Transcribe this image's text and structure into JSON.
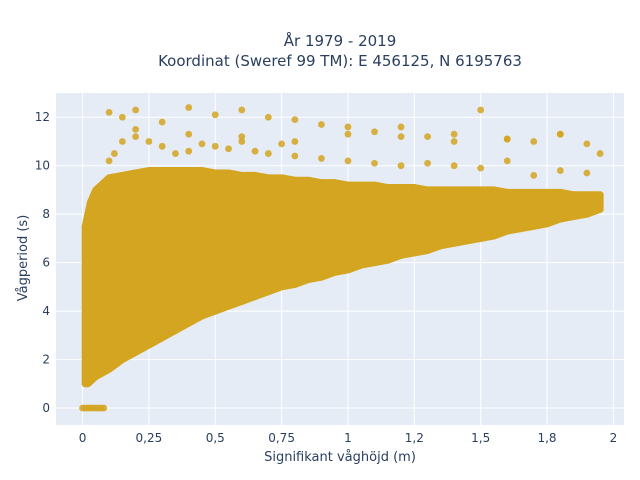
{
  "chart_data": {
    "type": "scatter",
    "title_lines": [
      "År 1979 - 2019",
      "Koordinat (Sweref 99 TM): E 456125, N 6195763"
    ],
    "xlabel": "Signifikant våghöjd (m)",
    "ylabel": "Vågperiod (s)",
    "xlim": [
      -0.1,
      2.04
    ],
    "ylim": [
      -0.7,
      13.0
    ],
    "x_ticks": [
      0,
      0.25,
      0.5,
      0.75,
      1,
      1.25,
      1.5,
      1.75,
      2
    ],
    "x_tick_labels": [
      "0",
      "0,25",
      "0,5",
      "0,75",
      "1",
      "1,2",
      "1,5",
      "1,8",
      "2"
    ],
    "y_ticks": [
      0,
      2,
      4,
      6,
      8,
      10,
      12
    ],
    "y_tick_labels": [
      "0",
      "2",
      "4",
      "6",
      "8",
      "10",
      "12"
    ],
    "grid": true,
    "background": "#e5ecf6",
    "marker_color": "#d4a520",
    "series": [
      {
        "x": [
          0.0,
          0.02,
          0.04,
          0.06,
          0.08,
          0.01,
          0.03,
          0.05,
          0.07,
          0.01,
          0.02,
          0.03,
          0.05,
          0.1,
          0.15,
          0.2,
          0.25,
          0.3,
          0.35,
          0.4,
          0.45,
          0.5,
          0.55,
          0.6,
          0.65,
          0.7,
          0.75,
          0.8,
          0.85,
          0.9,
          0.95,
          1.0,
          1.05,
          1.1,
          1.15,
          1.2,
          1.25,
          1.3,
          1.35,
          1.4,
          1.45,
          1.5,
          1.55,
          1.6,
          1.65,
          1.7,
          1.75,
          1.8,
          1.85,
          1.9,
          1.95,
          0.01,
          0.02,
          0.03,
          0.05,
          0.1,
          0.15,
          0.2,
          0.25,
          0.3,
          0.35,
          0.4,
          0.45,
          0.5,
          0.55,
          0.6,
          0.65,
          0.7,
          0.75,
          0.8,
          0.85,
          0.9,
          0.95,
          1.0,
          1.05,
          1.1,
          1.15,
          1.2,
          1.25,
          1.3,
          1.35,
          1.4,
          1.45,
          1.5,
          1.55,
          1.6,
          1.65,
          1.7,
          1.75,
          1.8,
          1.85,
          1.9,
          1.95,
          0.1,
          0.12,
          0.15,
          0.2,
          0.25,
          0.3,
          0.35,
          0.4,
          0.45,
          0.5,
          0.55,
          0.6,
          0.65,
          0.7,
          0.75,
          0.8,
          0.9,
          1.0,
          1.1,
          1.2,
          1.3,
          1.4,
          1.5,
          1.6,
          1.7,
          1.8,
          1.9,
          0.2,
          0.4,
          0.6,
          0.8,
          1.0,
          1.2,
          1.4,
          1.6,
          1.8,
          1.95,
          0.1,
          0.15,
          0.2,
          0.3,
          0.4,
          0.5,
          0.6,
          0.7,
          0.8,
          0.9,
          1.0,
          1.1,
          1.2,
          1.3,
          1.4,
          1.5,
          1.6,
          1.7,
          1.8,
          1.9
        ],
        "y": [
          0.0,
          0.0,
          0.0,
          0.0,
          0.0,
          0.0,
          0.0,
          0.0,
          0.0,
          1.0,
          1.0,
          1.1,
          1.3,
          1.6,
          2.0,
          2.3,
          2.6,
          2.9,
          3.2,
          3.5,
          3.8,
          4.0,
          4.2,
          4.4,
          4.6,
          4.8,
          5.0,
          5.1,
          5.3,
          5.4,
          5.6,
          5.7,
          5.9,
          6.0,
          6.1,
          6.3,
          6.4,
          6.5,
          6.7,
          6.8,
          6.9,
          7.0,
          7.1,
          7.3,
          7.4,
          7.5,
          7.6,
          7.8,
          7.9,
          8.0,
          8.2,
          7.5,
          8.0,
          8.5,
          9.0,
          9.5,
          9.6,
          9.7,
          9.8,
          9.8,
          9.8,
          9.8,
          9.8,
          9.7,
          9.7,
          9.6,
          9.6,
          9.5,
          9.5,
          9.4,
          9.4,
          9.3,
          9.3,
          9.2,
          9.2,
          9.2,
          9.1,
          9.1,
          9.1,
          9.0,
          9.0,
          9.0,
          9.0,
          9.0,
          9.0,
          8.9,
          8.9,
          8.9,
          8.9,
          8.9,
          8.8,
          8.8,
          8.8,
          10.2,
          10.5,
          11.0,
          11.2,
          11.0,
          10.8,
          10.5,
          10.6,
          10.9,
          10.8,
          10.7,
          11.0,
          10.6,
          10.5,
          10.9,
          10.4,
          10.3,
          10.2,
          10.1,
          10.0,
          10.1,
          10.0,
          9.9,
          10.2,
          9.6,
          9.8,
          9.7,
          11.5,
          11.3,
          11.2,
          11.0,
          11.3,
          11.2,
          11.0,
          11.1,
          11.3,
          10.5,
          12.2,
          12.0,
          12.3,
          11.8,
          12.4,
          12.1,
          12.3,
          12.0,
          11.9,
          11.7,
          11.6,
          11.4,
          11.6,
          11.2,
          11.3,
          12.3,
          11.1,
          11.0,
          11.3,
          10.9
        ]
      }
    ]
  }
}
